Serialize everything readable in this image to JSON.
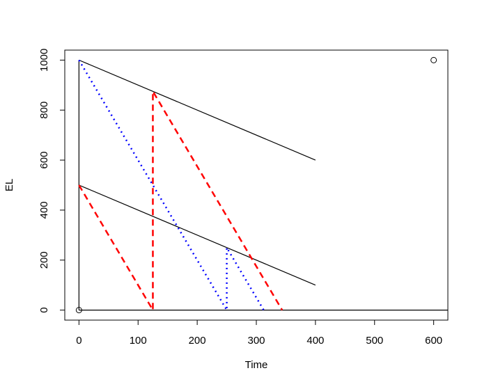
{
  "chart_data": {
    "type": "line",
    "xlabel": "Time",
    "ylabel": "EL",
    "xlim": [
      -24,
      624
    ],
    "ylim": [
      -40,
      1040
    ],
    "xticks": [
      0,
      100,
      200,
      300,
      400,
      500,
      600
    ],
    "yticks": [
      0,
      200,
      400,
      600,
      800,
      1000
    ],
    "points": {
      "x": [
        0,
        600
      ],
      "values": [
        0,
        1000
      ],
      "color": "#000000"
    },
    "series": [
      {
        "color": "#000000",
        "dash": "solid",
        "x": [
          0,
          400,
          null,
          0,
          400,
          null,
          0,
          0,
          null,
          0,
          624
        ],
        "values": [
          1000,
          600,
          null,
          500,
          100,
          null,
          0,
          1000,
          null,
          0,
          0
        ]
      },
      {
        "color": "#ff0000",
        "dash": "dashed",
        "x": [
          0,
          125,
          125,
          343.75
        ],
        "values": [
          500,
          0,
          875,
          0
        ]
      },
      {
        "color": "#0000ff",
        "dash": "dotted",
        "x": [
          0,
          250,
          250,
          312.5
        ],
        "values": [
          1000,
          0,
          250,
          0
        ]
      }
    ]
  }
}
